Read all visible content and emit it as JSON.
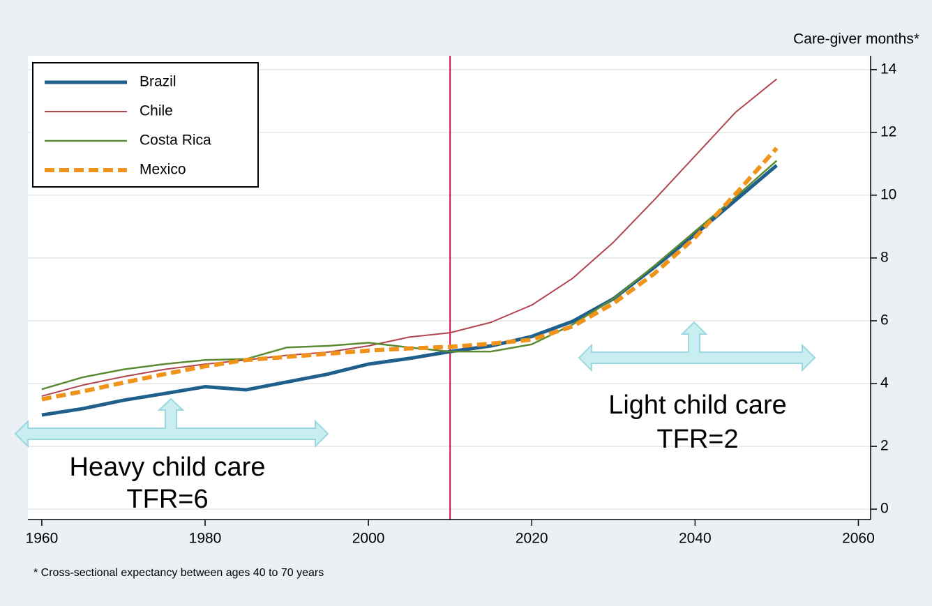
{
  "chart_data": {
    "type": "line",
    "y_axis_label": "Care-giver months*",
    "footnote": "* Cross-sectional expectancy between ages 40 to 70 years",
    "annotations": [
      "Heavy child care",
      "TFR=6",
      "Light child care",
      "TFR=2"
    ],
    "x": [
      1960,
      1965,
      1970,
      1975,
      1980,
      1985,
      1990,
      1995,
      2000,
      2005,
      2010,
      2015,
      2020,
      2025,
      2030,
      2035,
      2040,
      2045,
      2050
    ],
    "series": [
      {
        "name": "Brazil",
        "color": "#1f5f8b",
        "linewidth": 5,
        "linestyle": "solid",
        "values": [
          3.0,
          3.2,
          3.47,
          3.68,
          3.9,
          3.8,
          4.05,
          4.3,
          4.62,
          4.8,
          5.02,
          5.2,
          5.5,
          5.98,
          6.7,
          7.7,
          8.75,
          9.85,
          10.95
        ]
      },
      {
        "name": "Chile",
        "color": "#b0444f",
        "linewidth": 2,
        "linestyle": "solid",
        "values": [
          3.6,
          3.95,
          4.22,
          4.45,
          4.62,
          4.75,
          4.9,
          5.0,
          5.2,
          5.48,
          5.62,
          5.95,
          6.5,
          7.35,
          8.5,
          9.85,
          11.25,
          12.65,
          13.7
        ]
      },
      {
        "name": "Costa Rica",
        "color": "#5b8a32",
        "linewidth": 2.5,
        "linestyle": "solid",
        "values": [
          3.82,
          4.2,
          4.45,
          4.62,
          4.75,
          4.78,
          5.15,
          5.2,
          5.3,
          5.15,
          5.02,
          5.02,
          5.25,
          5.88,
          6.7,
          7.75,
          8.85,
          9.95,
          11.1
        ]
      },
      {
        "name": "Mexico",
        "color": "#f0931a",
        "linewidth": 6,
        "linestyle": "dashed",
        "values": [
          3.5,
          3.75,
          4.03,
          4.3,
          4.55,
          4.75,
          4.85,
          4.95,
          5.05,
          5.12,
          5.17,
          5.27,
          5.4,
          5.82,
          6.55,
          7.5,
          8.65,
          10.05,
          11.5
        ]
      }
    ],
    "reference_line_x": 2010,
    "reference_line_color": "#d0104c",
    "xlim": [
      1958.3,
      2061.5
    ],
    "xticks": [
      1960,
      1980,
      2000,
      2020,
      2040,
      2060
    ],
    "ylim": [
      -0.33,
      14.44
    ],
    "yticks": [
      0,
      2,
      4,
      6,
      8,
      10,
      12,
      14
    ],
    "grid": true,
    "legend": "upper left"
  }
}
